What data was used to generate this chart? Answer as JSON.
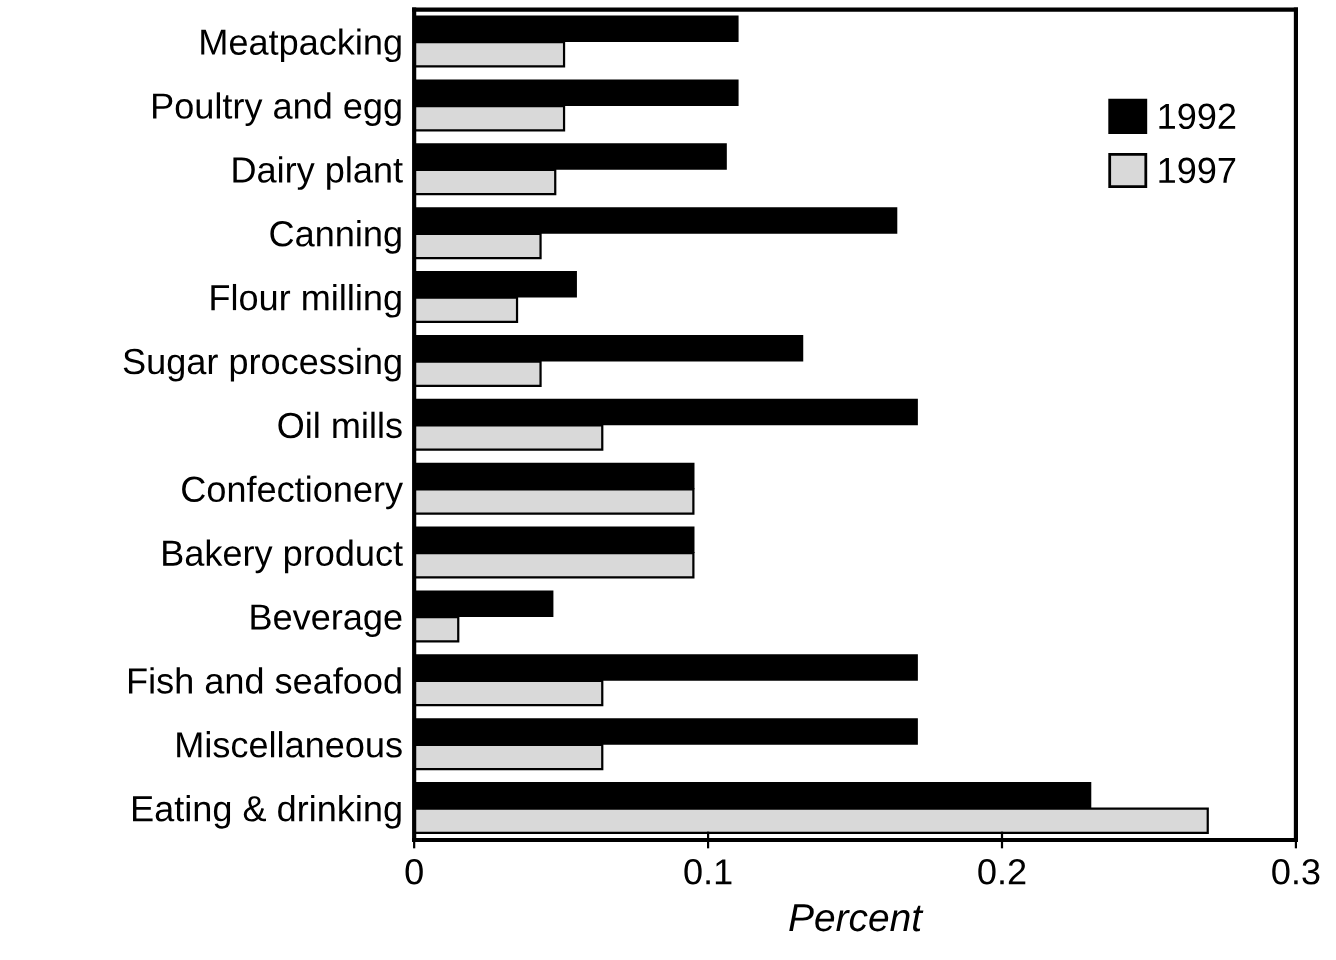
{
  "chart_data": {
    "type": "bar",
    "orientation": "horizontal",
    "xlabel": "Percent",
    "categories": [
      "Meatpacking",
      "Poultry and egg",
      "Dairy plant",
      "Canning",
      "Flour milling",
      "Sugar processing",
      "Oil mills",
      "Confectionery",
      "Bakery product",
      "Beverage",
      "Fish and seafood",
      "Miscellaneous",
      "Eating & drinking"
    ],
    "series": [
      {
        "name": "1992",
        "color": "#000000",
        "values": [
          0.11,
          0.11,
          0.106,
          0.164,
          0.055,
          0.132,
          0.171,
          0.095,
          0.095,
          0.047,
          0.171,
          0.171,
          0.23
        ]
      },
      {
        "name": "1997",
        "color": "#d9d9d9",
        "values": [
          0.051,
          0.051,
          0.048,
          0.043,
          0.035,
          0.043,
          0.064,
          0.095,
          0.095,
          0.015,
          0.064,
          0.064,
          0.27
        ]
      }
    ],
    "xlim": [
      0,
      0.3
    ],
    "xticks": [
      0,
      0.1,
      0.2,
      0.3
    ],
    "grid": false,
    "legend": "top right"
  }
}
